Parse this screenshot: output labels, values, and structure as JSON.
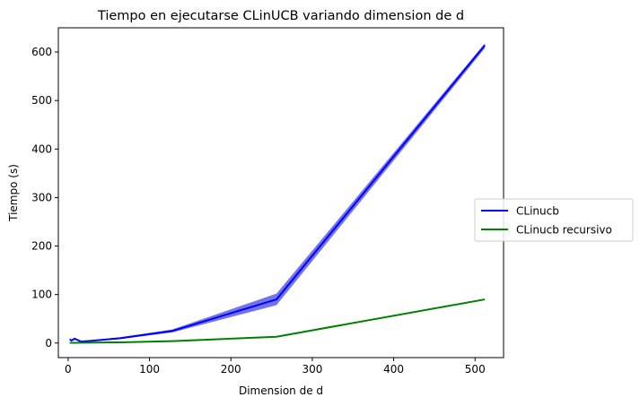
{
  "chart_data": {
    "type": "line",
    "title": "Tiempo en ejecutarse CLinUCB variando dimension de d",
    "xlabel": "Dimension de d",
    "ylabel": "Tiempo (s)",
    "xlim": [
      -12,
      535
    ],
    "ylim": [
      -30,
      650
    ],
    "xticks": [
      0,
      100,
      200,
      300,
      400,
      500
    ],
    "yticks": [
      0,
      100,
      200,
      300,
      400,
      500,
      600
    ],
    "grid": false,
    "legend_position": "center-right-outside",
    "series": [
      {
        "name": "CLinucb",
        "color": "#0000ff",
        "band_color": "#5a5ae6",
        "x": [
          2,
          4,
          8,
          16,
          32,
          64,
          128,
          256,
          512
        ],
        "y": [
          8,
          5,
          9,
          3,
          5,
          10,
          25,
          90,
          614
        ],
        "y_low": [
          6,
          3,
          7,
          2,
          4,
          8,
          22,
          78,
          608
        ],
        "y_high": [
          10,
          7,
          11,
          4,
          6,
          12,
          28,
          102,
          618
        ]
      },
      {
        "name": "CLinucb recursivo",
        "color": "#008000",
        "x": [
          2,
          4,
          8,
          16,
          32,
          64,
          128,
          256,
          512
        ],
        "y": [
          0.5,
          0.5,
          0.6,
          0.7,
          0.9,
          1.5,
          4,
          13,
          90
        ]
      }
    ]
  }
}
